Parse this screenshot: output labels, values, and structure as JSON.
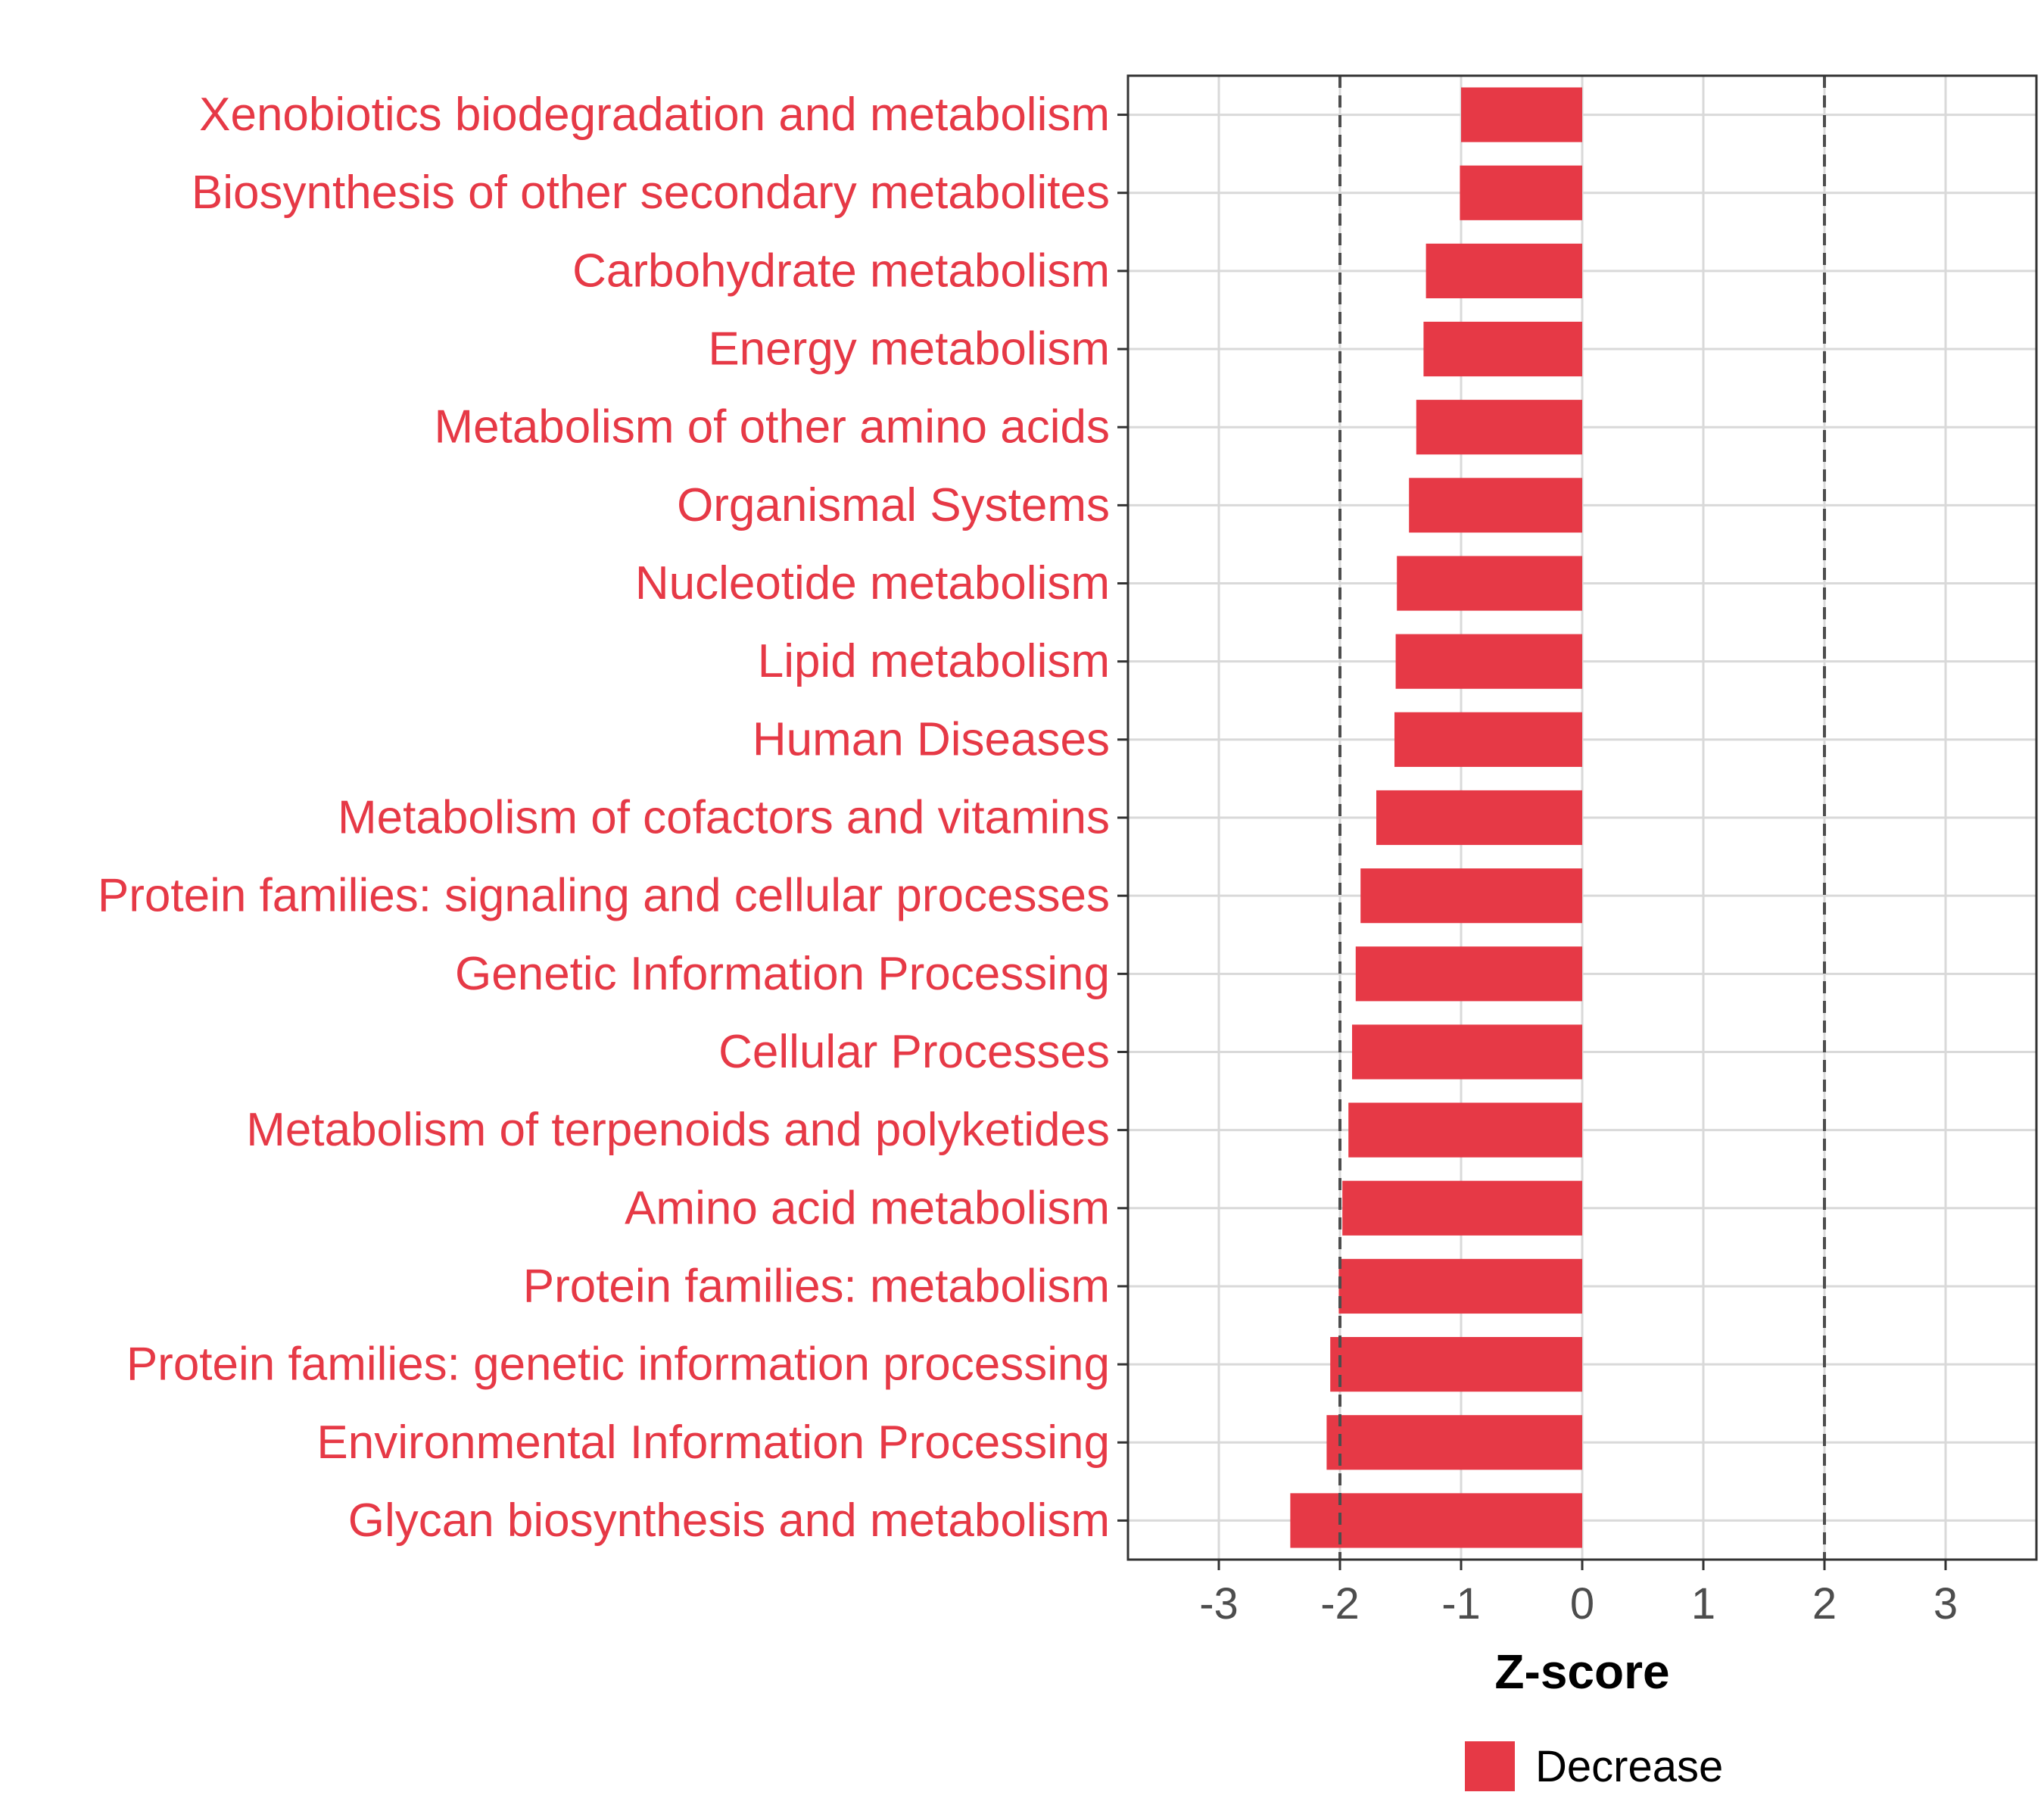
{
  "chart_data": {
    "type": "bar",
    "orientation": "horizontal",
    "categories": [
      "Xenobiotics biodegradation and metabolism",
      "Biosynthesis of other secondary metabolites",
      "Carbohydrate metabolism",
      "Energy metabolism",
      "Metabolism of other amino acids",
      "Organismal Systems",
      "Nucleotide metabolism",
      "Lipid metabolism",
      "Human Diseases",
      "Metabolism of cofactors and vitamins",
      "Protein families: signaling and cellular processes",
      "Genetic Information Processing",
      "Cellular Processes",
      "Metabolism of terpenoids and polyketides",
      "Amino acid metabolism",
      "Protein families: metabolism",
      "Protein families: genetic information processing",
      "Environmental Information Processing",
      "Glycan biosynthesis and metabolism"
    ],
    "values": [
      -1.0,
      -1.01,
      -1.29,
      -1.31,
      -1.37,
      -1.43,
      -1.53,
      -1.54,
      -1.55,
      -1.7,
      -1.83,
      -1.87,
      -1.9,
      -1.93,
      -1.98,
      -2.01,
      -2.08,
      -2.11,
      -2.41
    ],
    "xlabel": "Z-score",
    "xticks": [
      -3,
      -2,
      -1,
      0,
      1,
      2,
      3
    ],
    "xlim": [
      -3.75,
      3.75
    ],
    "reference_lines": [
      -2,
      2
    ],
    "grid": true,
    "legend": {
      "position": "bottom",
      "entries": [
        {
          "name": "Decrease",
          "color": "#e63946"
        }
      ]
    },
    "colors": {
      "bar": "#e63946",
      "label": "#e63946",
      "grid": "#d9d9d9",
      "reference_line": "#4d4d4d"
    }
  }
}
